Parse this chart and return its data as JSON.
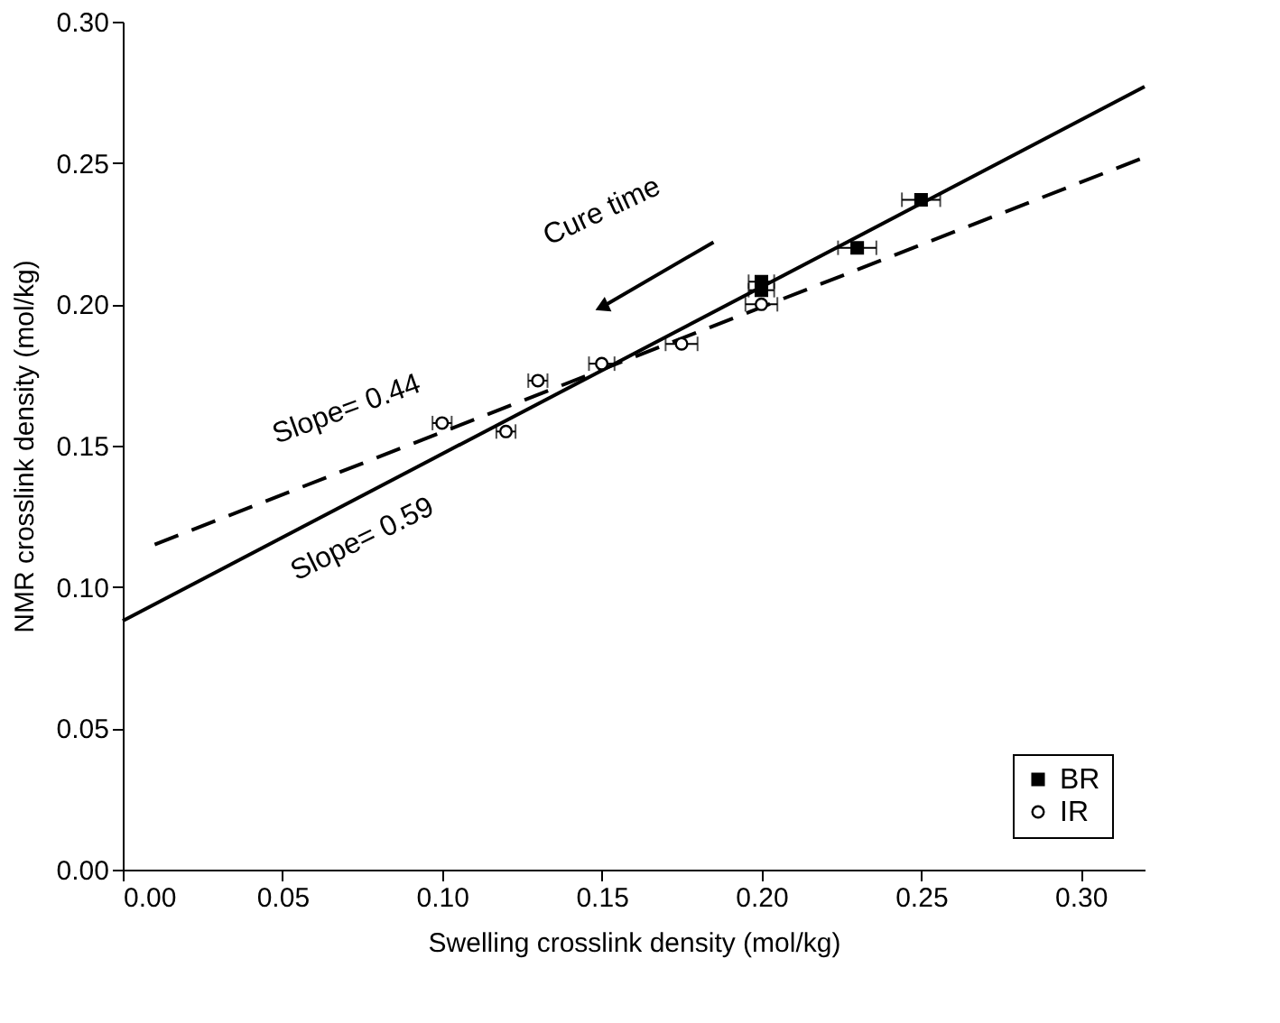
{
  "chart_data": {
    "type": "scatter",
    "xlabel": "Swelling crosslink density (mol/kg)",
    "ylabel": "NMR crosslink density (mol/kg)",
    "xlim": [
      0,
      0.32
    ],
    "ylim": [
      0,
      0.3
    ],
    "xticks": [
      {
        "value": 0,
        "label": "0.00"
      },
      {
        "value": 0.05,
        "label": "0.05"
      },
      {
        "value": 0.1,
        "label": "0.10"
      },
      {
        "value": 0.15,
        "label": "0.15"
      },
      {
        "value": 0.2,
        "label": "0.20"
      },
      {
        "value": 0.25,
        "label": "0.25"
      },
      {
        "value": 0.3,
        "label": "0.30"
      }
    ],
    "yticks": [
      {
        "value": 0,
        "label": "0.00"
      },
      {
        "value": 0.05,
        "label": "0.05"
      },
      {
        "value": 0.1,
        "label": "0.10"
      },
      {
        "value": 0.15,
        "label": "0.15"
      },
      {
        "value": 0.2,
        "label": "0.20"
      },
      {
        "value": 0.25,
        "label": "0.25"
      },
      {
        "value": 0.3,
        "label": "0.30"
      }
    ],
    "grid": false,
    "legend": "bottom right",
    "series": [
      {
        "name": "BR",
        "marker": "square",
        "color": "#000000",
        "x": [
          0.2,
          0.2,
          0.23,
          0.25
        ],
        "values": [
          0.205,
          0.208,
          0.22,
          0.237
        ],
        "xerrors": [
          0.004,
          0.004,
          0.006,
          0.006
        ]
      },
      {
        "name": "IR",
        "marker": "circle",
        "color": "#000000",
        "x": [
          0.1,
          0.12,
          0.13,
          0.15,
          0.175,
          0.2
        ],
        "values": [
          0.158,
          0.155,
          0.173,
          0.179,
          0.186,
          0.2
        ],
        "xerrors": [
          0.003,
          0.003,
          0.003,
          0.004,
          0.005,
          0.005
        ]
      },
      {
        "type": "line",
        "line_style": "solid",
        "color": "#000000",
        "x": [
          0,
          0.32
        ],
        "values": [
          0.088,
          0.277
        ]
      },
      {
        "type": "line",
        "line_style": "dashed",
        "color": "#000000",
        "x": [
          0.01,
          0.32
        ],
        "values": [
          0.115,
          0.252
        ]
      }
    ],
    "annotations": [
      "Slope= 0.44",
      "Slope= 0.59",
      "Cure time"
    ]
  }
}
